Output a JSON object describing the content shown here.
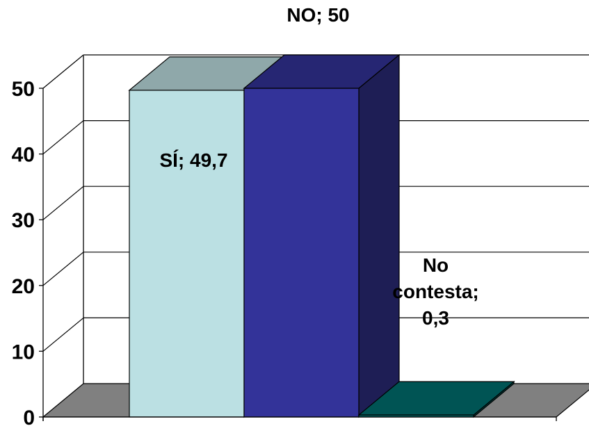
{
  "chart_data": {
    "type": "bar",
    "categories": [
      "SÍ",
      "NO",
      "No contesta"
    ],
    "values": [
      49.7,
      50,
      0.3
    ],
    "data_labels": [
      [
        "SÍ; 49,7"
      ],
      [
        "NO; 50"
      ],
      [
        "No",
        "contesta;",
        "0,3"
      ]
    ],
    "ylim": [
      0,
      50
    ],
    "yticks": [
      0,
      10,
      20,
      30,
      40,
      50
    ],
    "grid": true,
    "legend": "none",
    "three_d": true,
    "colors": {
      "front": [
        "#BBE0E3",
        "#333399",
        "#007070"
      ],
      "top": [
        "#8FA8AA",
        "#262673",
        "#005454"
      ],
      "side": [
        "#8FA8AA",
        "#1E1E55",
        "#003E3E"
      ],
      "floor": "#808080",
      "gridline": "#000000"
    }
  }
}
